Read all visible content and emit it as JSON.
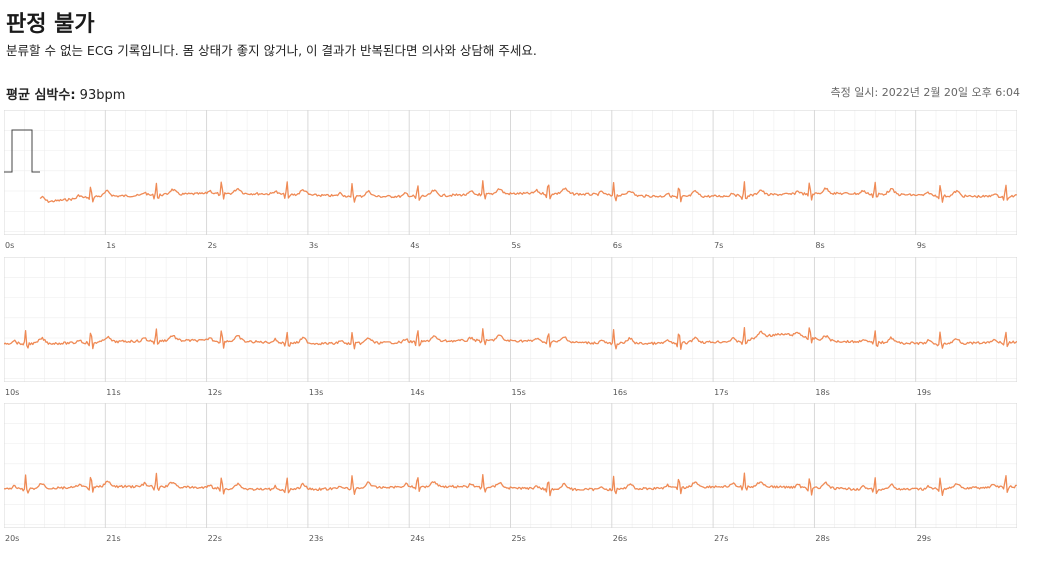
{
  "header": {
    "title": "판정 불가",
    "subtitle": "분류할 수 없는 ECG 기록입니다. 몸 상태가 좋지 않거나, 이 결과가 반복된다면 의사와 상담해 주세요.",
    "avg_label": "평균 심박수:",
    "avg_value": "93bpm",
    "measured_at": "측정 일시: 2022년 2월 20일 오후 6:04"
  },
  "colors": {
    "trace": "#ef8a55",
    "grid_minor": "#ededed",
    "grid_major": "#d6d6d6",
    "calibration": "#444444"
  },
  "strips": [
    {
      "start_s": 0,
      "end_s": 10,
      "tick_labels": [
        "0s",
        "1s",
        "2s",
        "3s",
        "4s",
        "5s",
        "6s",
        "7s",
        "8s",
        "9s"
      ],
      "has_calibration_pulse": true
    },
    {
      "start_s": 10,
      "end_s": 20,
      "tick_labels": [
        "10s",
        "11s",
        "12s",
        "13s",
        "14s",
        "15s",
        "16s",
        "17s",
        "18s",
        "19s"
      ],
      "has_calibration_pulse": false
    },
    {
      "start_s": 20,
      "end_s": 30,
      "tick_labels": [
        "20s",
        "21s",
        "22s",
        "23s",
        "24s",
        "25s",
        "26s",
        "27s",
        "28s",
        "29s"
      ],
      "has_calibration_pulse": false
    }
  ]
}
